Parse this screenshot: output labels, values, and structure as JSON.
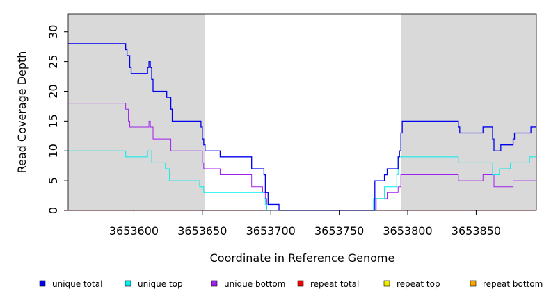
{
  "chart_data": {
    "type": "line",
    "title": "",
    "xlabel": "Coordinate in Reference Genome",
    "ylabel": "Read Coverage Depth",
    "xlim": [
      3653552,
      3653894
    ],
    "ylim": [
      0,
      33
    ],
    "x_ticks": [
      3653600,
      3653650,
      3653700,
      3653750,
      3653800,
      3653850
    ],
    "y_ticks": [
      0,
      5,
      10,
      15,
      20,
      25,
      30
    ],
    "shaded_regions": [
      [
        3653552,
        3653652
      ],
      [
        3653795,
        3653894
      ]
    ],
    "shade_color": "#d9d9d9",
    "legend_position": "bottom",
    "series": [
      {
        "name": "unique total",
        "color": "#0000ee",
        "points": [
          [
            3653552,
            28
          ],
          [
            3653594,
            28
          ],
          [
            3653594,
            27
          ],
          [
            3653595,
            27
          ],
          [
            3653595,
            26
          ],
          [
            3653597,
            26
          ],
          [
            3653597,
            24
          ],
          [
            3653598,
            24
          ],
          [
            3653598,
            23
          ],
          [
            3653610,
            23
          ],
          [
            3653610,
            24
          ],
          [
            3653611,
            24
          ],
          [
            3653611,
            25
          ],
          [
            3653612,
            25
          ],
          [
            3653612,
            24
          ],
          [
            3653613,
            24
          ],
          [
            3653613,
            22
          ],
          [
            3653614,
            22
          ],
          [
            3653614,
            20
          ],
          [
            3653624,
            20
          ],
          [
            3653624,
            19
          ],
          [
            3653627,
            19
          ],
          [
            3653627,
            17
          ],
          [
            3653628,
            17
          ],
          [
            3653628,
            15
          ],
          [
            3653649,
            15
          ],
          [
            3653649,
            14
          ],
          [
            3653650,
            14
          ],
          [
            3653650,
            12
          ],
          [
            3653651,
            12
          ],
          [
            3653651,
            11
          ],
          [
            3653652,
            11
          ],
          [
            3653652,
            10
          ],
          [
            3653663,
            10
          ],
          [
            3653663,
            9
          ],
          [
            3653686,
            9
          ],
          [
            3653686,
            7
          ],
          [
            3653695,
            7
          ],
          [
            3653695,
            6
          ],
          [
            3653696,
            6
          ],
          [
            3653696,
            3
          ],
          [
            3653698,
            3
          ],
          [
            3653698,
            1
          ],
          [
            3653706,
            1
          ],
          [
            3653706,
            0
          ],
          [
            3653776,
            0
          ],
          [
            3653776,
            5
          ],
          [
            3653783,
            5
          ],
          [
            3653783,
            6
          ],
          [
            3653785,
            6
          ],
          [
            3653785,
            7
          ],
          [
            3653793,
            7
          ],
          [
            3653793,
            9
          ],
          [
            3653794,
            9
          ],
          [
            3653794,
            10
          ],
          [
            3653795,
            10
          ],
          [
            3653795,
            13
          ],
          [
            3653796,
            13
          ],
          [
            3653796,
            15
          ],
          [
            3653837,
            15
          ],
          [
            3653837,
            14
          ],
          [
            3653838,
            14
          ],
          [
            3653838,
            13
          ],
          [
            3653855,
            13
          ],
          [
            3653855,
            14
          ],
          [
            3653862,
            14
          ],
          [
            3653862,
            12
          ],
          [
            3653863,
            12
          ],
          [
            3653863,
            10
          ],
          [
            3653868,
            10
          ],
          [
            3653868,
            11
          ],
          [
            3653877,
            11
          ],
          [
            3653877,
            12
          ],
          [
            3653878,
            12
          ],
          [
            3653878,
            13
          ],
          [
            3653890,
            13
          ],
          [
            3653890,
            14
          ],
          [
            3653894,
            14
          ]
        ]
      },
      {
        "name": "unique top",
        "color": "#00eeee",
        "points": [
          [
            3653552,
            10
          ],
          [
            3653594,
            10
          ],
          [
            3653594,
            9
          ],
          [
            3653610,
            9
          ],
          [
            3653610,
            10
          ],
          [
            3653613,
            10
          ],
          [
            3653613,
            8
          ],
          [
            3653623,
            8
          ],
          [
            3653623,
            7
          ],
          [
            3653626,
            7
          ],
          [
            3653626,
            5
          ],
          [
            3653648,
            5
          ],
          [
            3653648,
            4
          ],
          [
            3653651,
            4
          ],
          [
            3653651,
            3
          ],
          [
            3653695,
            3
          ],
          [
            3653695,
            2
          ],
          [
            3653696,
            2
          ],
          [
            3653696,
            1
          ],
          [
            3653697,
            1
          ],
          [
            3653697,
            0
          ],
          [
            3653775,
            0
          ],
          [
            3653775,
            2
          ],
          [
            3653783,
            2
          ],
          [
            3653783,
            4
          ],
          [
            3653792,
            4
          ],
          [
            3653792,
            6
          ],
          [
            3653793,
            6
          ],
          [
            3653793,
            9
          ],
          [
            3653837,
            9
          ],
          [
            3653837,
            8
          ],
          [
            3653862,
            8
          ],
          [
            3653862,
            6
          ],
          [
            3653867,
            6
          ],
          [
            3653867,
            7
          ],
          [
            3653875,
            7
          ],
          [
            3653875,
            8
          ],
          [
            3653889,
            8
          ],
          [
            3653889,
            9
          ],
          [
            3653894,
            9
          ]
        ]
      },
      {
        "name": "unique bottom",
        "color": "#a020f0",
        "points": [
          [
            3653552,
            18
          ],
          [
            3653594,
            18
          ],
          [
            3653594,
            17
          ],
          [
            3653596,
            17
          ],
          [
            3653596,
            15
          ],
          [
            3653597,
            15
          ],
          [
            3653597,
            14
          ],
          [
            3653611,
            14
          ],
          [
            3653611,
            15
          ],
          [
            3653612,
            15
          ],
          [
            3653612,
            14
          ],
          [
            3653614,
            14
          ],
          [
            3653614,
            12
          ],
          [
            3653627,
            12
          ],
          [
            3653627,
            10
          ],
          [
            3653650,
            10
          ],
          [
            3653650,
            8
          ],
          [
            3653651,
            8
          ],
          [
            3653651,
            7
          ],
          [
            3653663,
            7
          ],
          [
            3653663,
            6
          ],
          [
            3653686,
            6
          ],
          [
            3653686,
            4
          ],
          [
            3653694,
            4
          ],
          [
            3653694,
            3
          ],
          [
            3653696,
            3
          ],
          [
            3653696,
            2
          ],
          [
            3653697,
            2
          ],
          [
            3653697,
            0
          ],
          [
            3653777,
            0
          ],
          [
            3653777,
            2
          ],
          [
            3653785,
            2
          ],
          [
            3653785,
            3
          ],
          [
            3653793,
            3
          ],
          [
            3653793,
            4
          ],
          [
            3653795,
            4
          ],
          [
            3653795,
            6
          ],
          [
            3653837,
            6
          ],
          [
            3653837,
            5
          ],
          [
            3653855,
            5
          ],
          [
            3653855,
            6
          ],
          [
            3653863,
            6
          ],
          [
            3653863,
            4
          ],
          [
            3653877,
            4
          ],
          [
            3653877,
            5
          ],
          [
            3653894,
            5
          ]
        ]
      },
      {
        "name": "repeat total",
        "color": "#ee0000",
        "points": [
          [
            3653552,
            0
          ],
          [
            3653894,
            0
          ]
        ]
      },
      {
        "name": "repeat top",
        "color": "#eeee00",
        "points": [
          [
            3653552,
            0
          ],
          [
            3653894,
            0
          ]
        ]
      },
      {
        "name": "repeat bottom",
        "color": "#ffa500",
        "points": [
          [
            3653552,
            0
          ],
          [
            3653894,
            0
          ]
        ]
      }
    ]
  }
}
